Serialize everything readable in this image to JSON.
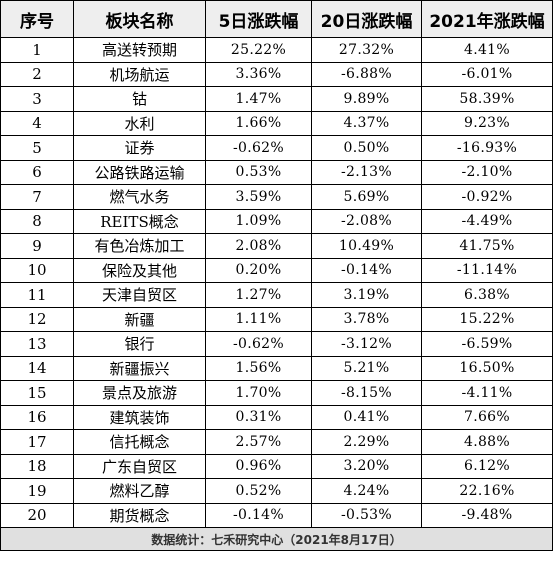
{
  "table": {
    "headers": [
      "序号",
      "板块名称",
      "5日涨跌幅",
      "20日涨跌幅",
      "2021年涨跌幅"
    ],
    "rows": [
      [
        "1",
        "高送转预期",
        "25.22%",
        "27.32%",
        "4.41%"
      ],
      [
        "2",
        "机场航运",
        "3.36%",
        "-6.88%",
        "-6.01%"
      ],
      [
        "3",
        "钴",
        "1.47%",
        "9.89%",
        "58.39%"
      ],
      [
        "4",
        "水利",
        "1.66%",
        "4.37%",
        "9.23%"
      ],
      [
        "5",
        "证券",
        "-0.62%",
        "0.50%",
        "-16.93%"
      ],
      [
        "6",
        "公路铁路运输",
        "0.53%",
        "-2.13%",
        "-2.10%"
      ],
      [
        "7",
        "燃气水务",
        "3.59%",
        "5.69%",
        "-0.92%"
      ],
      [
        "8",
        "REITS概念",
        "1.09%",
        "-2.08%",
        "-4.49%"
      ],
      [
        "9",
        "有色冶炼加工",
        "2.08%",
        "10.49%",
        "41.75%"
      ],
      [
        "10",
        "保险及其他",
        "0.20%",
        "-0.14%",
        "-11.14%"
      ],
      [
        "11",
        "天津自贸区",
        "1.27%",
        "3.19%",
        "6.38%"
      ],
      [
        "12",
        "新疆",
        "1.11%",
        "3.78%",
        "15.22%"
      ],
      [
        "13",
        "银行",
        "-0.62%",
        "-3.12%",
        "-6.59%"
      ],
      [
        "14",
        "新疆振兴",
        "1.56%",
        "5.21%",
        "16.50%"
      ],
      [
        "15",
        "景点及旅游",
        "1.70%",
        "-8.15%",
        "-4.11%"
      ],
      [
        "16",
        "建筑装饰",
        "0.31%",
        "0.41%",
        "7.66%"
      ],
      [
        "17",
        "信托概念",
        "2.57%",
        "2.29%",
        "4.88%"
      ],
      [
        "18",
        "广东自贸区",
        "0.96%",
        "3.20%",
        "6.12%"
      ],
      [
        "19",
        "燃料乙醇",
        "0.52%",
        "4.24%",
        "22.16%"
      ],
      [
        "20",
        "期货概念",
        "-0.14%",
        "-0.53%",
        "-9.48%"
      ]
    ],
    "footer": "数据统计：七禾研究中心（2021年8月17日）"
  },
  "colors": {
    "header_bg": "#eeeeee",
    "footer_bg": "#e0e0e0",
    "border": "#000000"
  }
}
